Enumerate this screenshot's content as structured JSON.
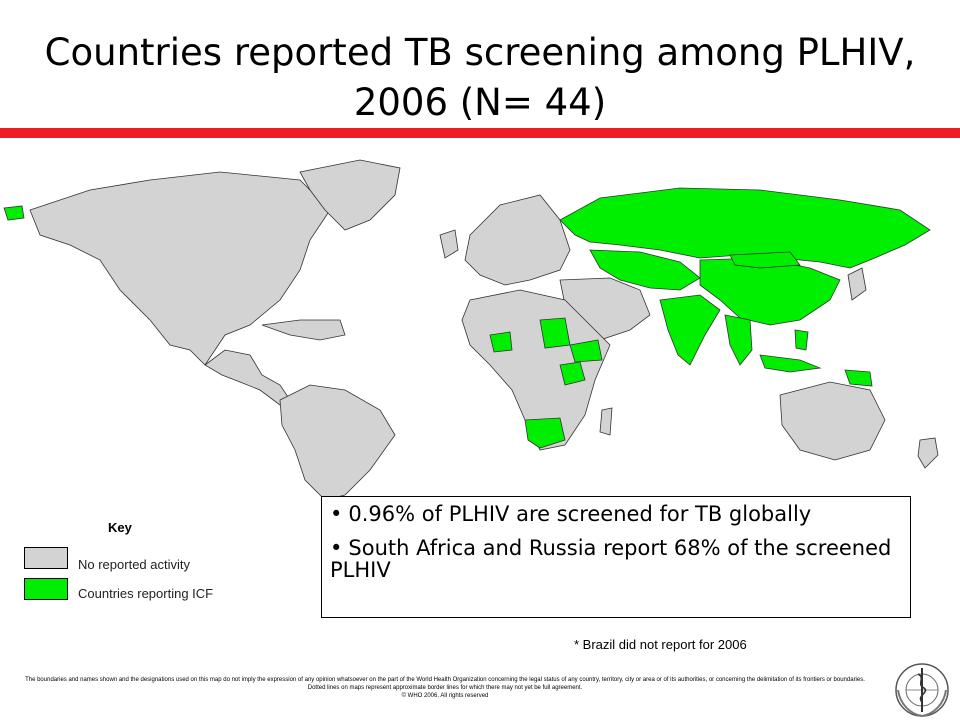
{
  "title_line1": "Countries reported TB screening among PLHIV,",
  "title_line2": "2006 (N= 44)",
  "colors": {
    "accent_bar": "#ee1c25",
    "no_activity": "#d3d3d3",
    "reporting_icf": "#00ee00",
    "ocean": "#ffffff"
  },
  "key": {
    "title": "Key",
    "items": [
      {
        "label": "No reported activity",
        "color": "#d3d3d3"
      },
      {
        "label": "Countries reporting ICF",
        "color": "#00ee00"
      }
    ]
  },
  "callout": {
    "bullets": [
      "0.96% of PLHIV are screened for TB globally",
      "South Africa and Russia report 68% of the screened PLHIV"
    ]
  },
  "note": "* Brazil did not report for 2006",
  "disclaimer": {
    "line1": "The boundaries and names shown and the designations used on this map do not imply the expression of any opinion whatsoever on the part of the World Health Organization concerning the legal status of any country, territory, city or area or of its authorities, or concerning the delimitation of its frontiers or boundaries.",
    "line2": "Dotted lines on maps represent approximate border lines for which there may not yet be full agreement.",
    "line3": "© WHO 2006. All rights reserved"
  },
  "logo": {
    "icon": "who-emblem-icon"
  }
}
